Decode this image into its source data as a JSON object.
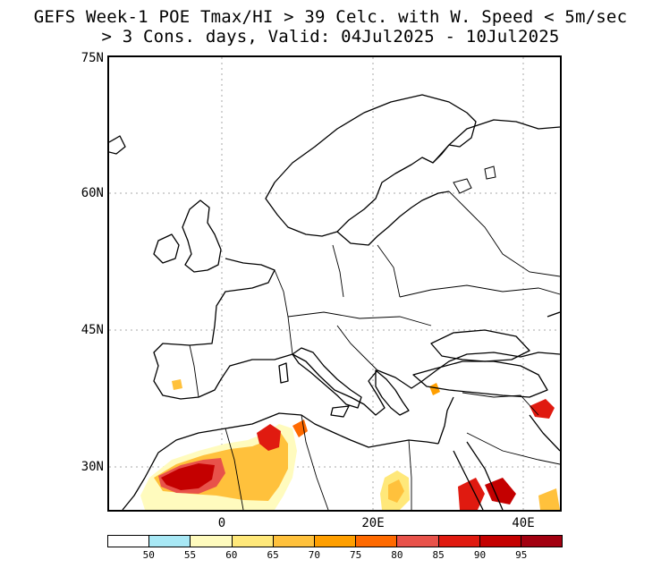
{
  "title": {
    "line1": "GEFS Week-1 POE Tmax/HI > 39 Celc. with W. Speed < 5m/sec",
    "line2": "> 3 Cons. days, Valid: 04Jul2025 - 10Jul2025"
  },
  "map": {
    "region": "Europe, North Africa and Middle East",
    "lat_labels": [
      "75N",
      "60N",
      "45N",
      "30N"
    ],
    "lon_labels": [
      "0",
      "20E",
      "40E"
    ],
    "lat_range": [
      25,
      75
    ],
    "lon_range": [
      -15,
      45
    ],
    "grid_style": "dotted gray",
    "shaded_regions_description": [
      "Northwest Africa (Morocco, Algeria)",
      "Eastern Libya",
      "Southern Egypt",
      "Iraq / Syria border",
      "Eastern Mediterranean coast",
      "Southern Spain (small spots)"
    ]
  },
  "colorbar": {
    "colors": [
      "#ffffff",
      "#a8e8f5",
      "#fffbbe",
      "#ffe87a",
      "#ffc13c",
      "#ff9f00",
      "#ff6a00",
      "#e8524a",
      "#e01a10",
      "#c40000",
      "#a20010"
    ],
    "labels": [
      "50",
      "55",
      "60",
      "65",
      "70",
      "75",
      "80",
      "85",
      "90",
      "95"
    ]
  }
}
